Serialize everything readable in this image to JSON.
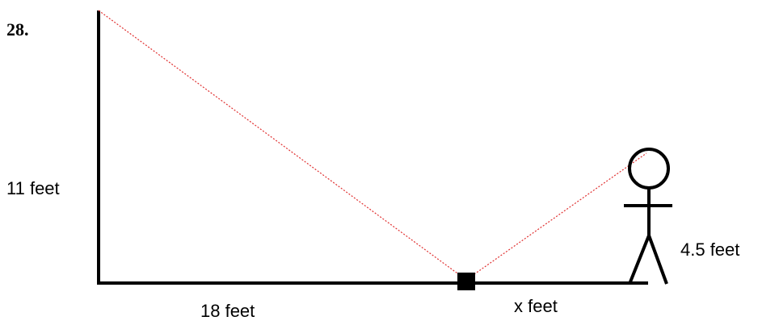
{
  "problem_number": "28.",
  "labels": {
    "height": "11 feet",
    "base": "18 feet",
    "distance": "x feet",
    "person_height": "4.5 feet"
  }
}
